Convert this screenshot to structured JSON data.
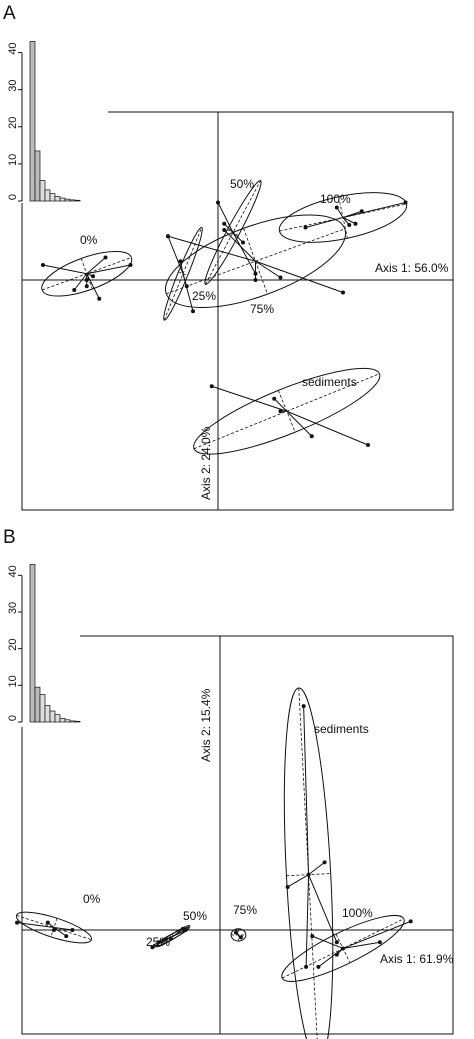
{
  "chart_data": [
    {
      "panel": "A",
      "type": "scatter",
      "axis1_label": "Axis 1: 56.0%",
      "axis2_label": "Axis 2: 24.0%",
      "groups": [
        {
          "name": "0%",
          "center": [
            -1.05,
            0.05
          ],
          "ellipse": {
            "rx": 0.38,
            "ry": 0.13,
            "angle": -20
          },
          "points": [
            [
              -1.4,
              0.12
            ],
            [
              -0.9,
              0.18
            ],
            [
              -0.7,
              0.12
            ],
            [
              -0.95,
              -0.15
            ],
            [
              -1.15,
              -0.08
            ],
            [
              -1.0,
              0.03
            ],
            [
              -1.05,
              0.0
            ],
            [
              -1.05,
              -0.05
            ]
          ]
        },
        {
          "name": "25%",
          "center": [
            -0.28,
            0.05
          ],
          "ellipse": {
            "rx": 0.4,
            "ry": 0.04,
            "angle": -68
          },
          "points": [
            [
              -0.4,
              0.35
            ],
            [
              -0.2,
              -0.25
            ],
            [
              -0.3,
              0.15
            ],
            [
              -0.25,
              -0.05
            ]
          ]
        },
        {
          "name": "50%",
          "center": [
            0.12,
            0.38
          ],
          "ellipse": {
            "rx": 0.47,
            "ry": 0.05,
            "angle": -62
          },
          "points": [
            [
              0.0,
              0.62
            ],
            [
              0.3,
              0.05
            ],
            [
              0.2,
              0.3
            ],
            [
              0.05,
              0.45
            ]
          ]
        },
        {
          "name": "75%",
          "center": [
            0.3,
            0.15
          ],
          "ellipse": {
            "rx": 0.76,
            "ry": 0.28,
            "angle": -20
          },
          "points": [
            [
              -0.4,
              0.35
            ],
            [
              0.5,
              0.02
            ],
            [
              1.0,
              -0.1
            ],
            [
              0.05,
              0.4
            ],
            [
              0.3,
              0.0
            ]
          ]
        },
        {
          "name": "100%",
          "center": [
            1.0,
            0.5
          ],
          "ellipse": {
            "rx": 0.52,
            "ry": 0.17,
            "angle": -12
          },
          "points": [
            [
              1.5,
              0.62
            ],
            [
              0.7,
              0.42
            ],
            [
              1.1,
              0.45
            ],
            [
              0.95,
              0.58
            ],
            [
              1.15,
              0.55
            ],
            [
              1.05,
              0.44
            ]
          ]
        },
        {
          "name": "sediments",
          "center": [
            0.55,
            -1.05
          ],
          "ellipse": {
            "rx": 0.8,
            "ry": 0.18,
            "angle": -22
          },
          "points": [
            [
              -0.05,
              -0.85
            ],
            [
              1.2,
              -1.32
            ],
            [
              0.75,
              -1.25
            ],
            [
              0.45,
              -0.95
            ],
            [
              0.5,
              -1.05
            ]
          ]
        }
      ],
      "eigenvalues": {
        "values": [
          43,
          13.5,
          5.5,
          3,
          2,
          1.2,
          0.8,
          0.5,
          0.3,
          0.2
        ],
        "ylim": [
          0,
          45
        ],
        "yticks": [
          "0",
          "10",
          "20",
          "30",
          "40"
        ]
      }
    },
    {
      "panel": "B",
      "type": "scatter",
      "axis1_label": "Axis 1: 61.9%",
      "axis2_label": "Axis 2: 15.4%",
      "groups": [
        {
          "name": "0%",
          "center": [
            -1.35,
            0.02
          ],
          "ellipse": {
            "rx": 0.32,
            "ry": 0.08,
            "angle": 18
          },
          "points": [
            [
              -1.65,
              0.06
            ],
            [
              -1.2,
              0.0
            ],
            [
              -1.4,
              0.06
            ],
            [
              -1.25,
              -0.05
            ],
            [
              -1.35,
              0.0
            ]
          ]
        },
        {
          "name": "25%",
          "center": [
            -0.4,
            -0.06
          ],
          "ellipse": {
            "rx": 0.17,
            "ry": 0.02,
            "angle": -28
          },
          "points": [
            [
              -0.55,
              -0.14
            ],
            [
              -0.28,
              0.0
            ],
            [
              -0.4,
              -0.07
            ]
          ]
        },
        {
          "name": "50%",
          "center": [
            -0.38,
            -0.05
          ],
          "ellipse": {
            "rx": 0.16,
            "ry": 0.02,
            "angle": -32
          },
          "points": [
            [
              -0.3,
              0.01
            ],
            [
              -0.5,
              -0.1
            ]
          ]
        },
        {
          "name": "75%",
          "center": [
            0.15,
            -0.04
          ],
          "ellipse": {
            "rx": 0.06,
            "ry": 0.05,
            "angle": 0
          },
          "points": [
            [
              0.13,
              -0.02
            ],
            [
              0.17,
              -0.06
            ]
          ]
        },
        {
          "name": "100%",
          "center": [
            1.0,
            -0.15
          ],
          "ellipse": {
            "rx": 0.55,
            "ry": 0.13,
            "angle": -26
          },
          "points": [
            [
              1.55,
              0.07
            ],
            [
              0.75,
              -0.05
            ],
            [
              0.8,
              -0.3
            ],
            [
              1.3,
              -0.1
            ],
            [
              0.95,
              -0.2
            ],
            [
              1.0,
              -0.15
            ]
          ]
        },
        {
          "name": "sediments",
          "center": [
            0.72,
            0.45
          ],
          "ellipse": {
            "rx": 0.18,
            "ry": 1.52,
            "angle": -3
          },
          "points": [
            [
              0.68,
              1.82
            ],
            [
              0.85,
              0.55
            ],
            [
              0.55,
              0.35
            ],
            [
              0.95,
              -0.1
            ],
            [
              0.7,
              -0.3
            ],
            [
              0.72,
              0.45
            ]
          ]
        }
      ],
      "eigenvalues": {
        "values": [
          43,
          9.5,
          7.5,
          4.5,
          3,
          2,
          1,
          0.6,
          0.3,
          0.2
        ],
        "ylim": [
          0,
          45
        ],
        "yticks": [
          "0",
          "10",
          "20",
          "30",
          "40"
        ]
      }
    }
  ],
  "panels": {
    "A": "A",
    "B": "B"
  }
}
